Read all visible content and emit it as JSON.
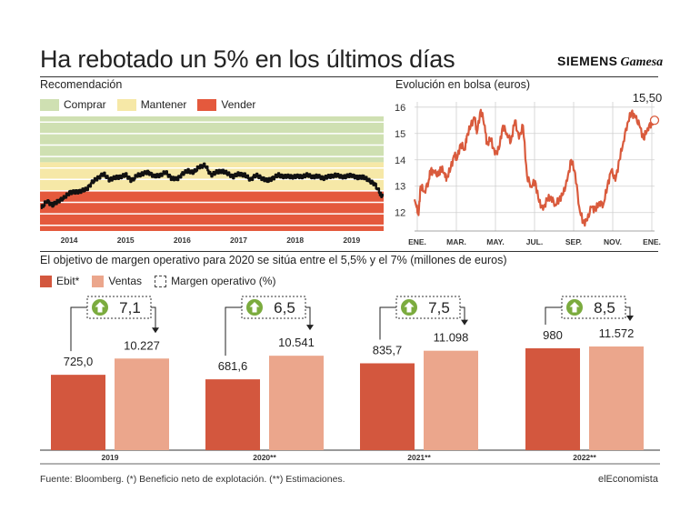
{
  "header": {
    "title": "Ha rebotado un 5% en los últimos días",
    "logo_siemens": "SIEMENS",
    "logo_gamesa": "Gamesa"
  },
  "recommendation": {
    "title": "Recomendación",
    "legend": [
      {
        "label": "Comprar",
        "color": "#cfe0b2"
      },
      {
        "label": "Mantener",
        "color": "#f6e8a7"
      },
      {
        "label": "Vender",
        "color": "#e4593d"
      }
    ]
  },
  "stock": {
    "title": "Evolución en bolsa (euros)",
    "last_value_label": "15,50"
  },
  "bars_section": {
    "title": "El objetivo de margen operativo para 2020 se sitúa entre el 5,5% y el 7% (millones de euros)",
    "legend": [
      {
        "label": "Ebit*",
        "color": "#d3573e"
      },
      {
        "label": "Ventas",
        "color": "#eba68c"
      },
      {
        "label": "Margen operativo (%)",
        "color": "#ffffff"
      }
    ]
  },
  "chart_data": [
    {
      "type": "line",
      "title": "Recomendación",
      "x": [
        2013.5,
        2013.6,
        2013.7,
        2013.8,
        2013.9,
        2014.0,
        2014.1,
        2014.2,
        2014.3,
        2014.4,
        2014.5,
        2014.6,
        2014.7,
        2014.8,
        2014.9,
        2015.0,
        2015.1,
        2015.2,
        2015.3,
        2015.4,
        2015.5,
        2015.6,
        2015.7,
        2015.8,
        2015.9,
        2016.0,
        2016.1,
        2016.2,
        2016.3,
        2016.4,
        2016.5,
        2016.6,
        2016.7,
        2016.8,
        2016.9,
        2017.0,
        2017.1,
        2017.2,
        2017.3,
        2017.4,
        2017.5,
        2017.6,
        2017.7,
        2017.8,
        2017.9,
        2018.0,
        2018.1,
        2018.2,
        2018.3,
        2018.4,
        2018.5,
        2018.6,
        2018.7,
        2018.8,
        2018.9,
        2019.0,
        2019.1,
        2019.2,
        2019.3,
        2019.4,
        2019.5,
        2019.55
      ],
      "values": [
        4.2,
        4.45,
        4.3,
        4.45,
        4.55,
        4.75,
        4.75,
        4.8,
        4.85,
        5.1,
        5.25,
        5.4,
        5.2,
        5.25,
        5.3,
        5.35,
        5.15,
        5.35,
        5.4,
        5.45,
        5.3,
        5.35,
        5.45,
        5.25,
        5.2,
        5.4,
        5.5,
        5.45,
        5.65,
        5.7,
        5.35,
        5.45,
        5.5,
        5.4,
        5.3,
        5.4,
        5.35,
        5.2,
        5.35,
        5.25,
        5.15,
        5.25,
        5.35,
        5.3,
        5.3,
        5.3,
        5.3,
        5.35,
        5.3,
        5.3,
        5.25,
        5.3,
        5.35,
        5.3,
        5.3,
        5.35,
        5.25,
        5.3,
        5.15,
        5.05,
        4.7,
        4.6
      ],
      "zones": [
        {
          "name": "Comprar",
          "from": 5.8,
          "to": 7.4
        },
        {
          "name": "Mantener",
          "from": 4.8,
          "to": 5.8
        },
        {
          "name": "Vender",
          "from": 3.4,
          "to": 4.8
        }
      ],
      "xticks": [
        "2014",
        "2015",
        "2016",
        "2017",
        "2018",
        "2019"
      ],
      "ylim": [
        3.4,
        7.4
      ]
    },
    {
      "type": "line",
      "title": "Evolución en bolsa (euros)",
      "x": [
        0,
        0.1,
        0.2,
        0.3,
        0.5,
        0.7,
        0.8,
        1.0,
        1.2,
        1.3,
        1.5,
        1.6,
        1.8,
        2.0,
        2.1,
        2.3,
        2.5,
        2.6,
        2.8,
        3.0,
        3.1,
        3.3,
        3.5,
        3.6,
        3.8,
        4.0,
        4.2,
        4.4,
        4.6,
        4.8,
        5.0,
        5.2,
        5.4,
        5.6,
        5.8,
        6.0,
        6.2,
        6.4,
        6.6,
        6.8,
        7.0,
        7.2,
        7.4,
        7.6,
        7.8,
        8.0,
        8.2,
        8.4,
        8.6,
        8.8,
        9.0,
        9.2,
        9.4,
        9.6,
        9.8,
        10.0,
        10.2,
        10.4,
        10.6,
        10.8,
        11.0,
        11.2,
        11.4,
        11.6,
        11.8,
        11.95
      ],
      "values": [
        12.5,
        12.2,
        11.9,
        13.0,
        12.8,
        13.2,
        13.6,
        13.5,
        13.4,
        13.7,
        13.5,
        13.3,
        13.7,
        14.2,
        14.0,
        14.6,
        14.4,
        14.9,
        15.3,
        15.6,
        15.0,
        15.9,
        15.3,
        14.6,
        14.8,
        14.2,
        14.4,
        15.3,
        15.0,
        14.7,
        15.5,
        14.8,
        15.3,
        13.4,
        13.0,
        13.2,
        12.4,
        12.1,
        12.5,
        12.6,
        12.3,
        12.5,
        12.7,
        13.2,
        14.0,
        13.5,
        12.2,
        11.6,
        11.7,
        12.2,
        12.1,
        12.4,
        12.3,
        13.0,
        13.6,
        13.2,
        14.0,
        14.7,
        15.4,
        15.8,
        15.6,
        15.3,
        14.8,
        15.2,
        15.4,
        15.5
      ],
      "xticks": [
        "ENE.",
        "MAR.",
        "MAY.",
        "JUL.",
        "SEP.",
        "NOV.",
        "ENE."
      ],
      "yticks": [
        12,
        13,
        14,
        15,
        16
      ],
      "ylim": [
        11.3,
        16.2
      ],
      "annotation": "15,50"
    },
    {
      "type": "bar",
      "title": "El objetivo de margen operativo para 2020 se sitúa entre el 5,5% y el 7% (millones de euros)",
      "categories": [
        "2019",
        "2020**",
        "2021**",
        "2022**"
      ],
      "series": [
        {
          "name": "Ebit*",
          "values": [
            725.0,
            681.6,
            835.7,
            980
          ],
          "labels": [
            "725,0",
            "681,6",
            "835,7",
            "980"
          ]
        },
        {
          "name": "Ventas",
          "values": [
            10227,
            10541,
            11098,
            11572
          ],
          "labels": [
            "10.227",
            "10.541",
            "11.098",
            "11.572"
          ]
        },
        {
          "name": "Margen operativo (%)",
          "values": [
            7.1,
            6.5,
            7.5,
            8.5
          ],
          "labels": [
            "7,1",
            "6,5",
            "7,5",
            "8,5"
          ]
        }
      ]
    }
  ],
  "footer": {
    "source": "Fuente: Bloomberg. (*) Beneficio neto de explotación. (**) Estimaciones.",
    "brand": "elEconomista"
  }
}
